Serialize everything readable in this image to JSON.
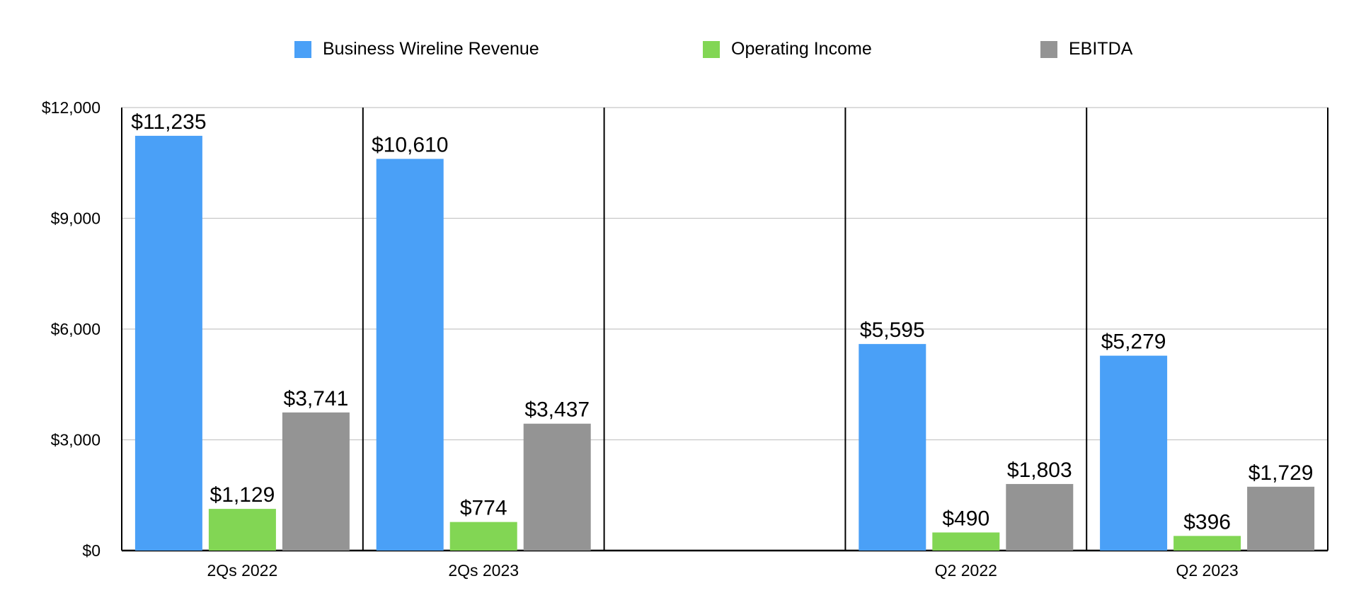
{
  "chart_data": {
    "type": "bar",
    "title": "",
    "xlabel": "",
    "ylabel": "",
    "ylim": [
      0,
      12000
    ],
    "yticks": [
      0,
      3000,
      6000,
      9000,
      12000
    ],
    "ytick_labels": [
      "$0",
      "$3,000",
      "$6,000",
      "$9,000",
      "$12,000"
    ],
    "grid": true,
    "legend_position": "top-center",
    "categories": [
      "2Qs 2022",
      "2Qs 2023",
      "",
      "Q2 2022",
      "Q2 2023"
    ],
    "series": [
      {
        "name": "Business Wireline Revenue",
        "color": "#4aa0f7",
        "values": [
          11235,
          10610,
          null,
          5595,
          5279
        ],
        "labels": [
          "$11,235",
          "$10,610",
          "",
          "$5,595",
          "$5,279"
        ]
      },
      {
        "name": "Operating Income",
        "color": "#82d654",
        "values": [
          1129,
          774,
          null,
          490,
          396
        ],
        "labels": [
          "$1,129",
          "$774",
          "",
          "$490",
          "$396"
        ]
      },
      {
        "name": "EBITDA",
        "color": "#949494",
        "values": [
          3741,
          3437,
          null,
          1803,
          1729
        ],
        "labels": [
          "$3,741",
          "$3,437",
          "",
          "$1,803",
          "$1,729"
        ]
      }
    ]
  }
}
